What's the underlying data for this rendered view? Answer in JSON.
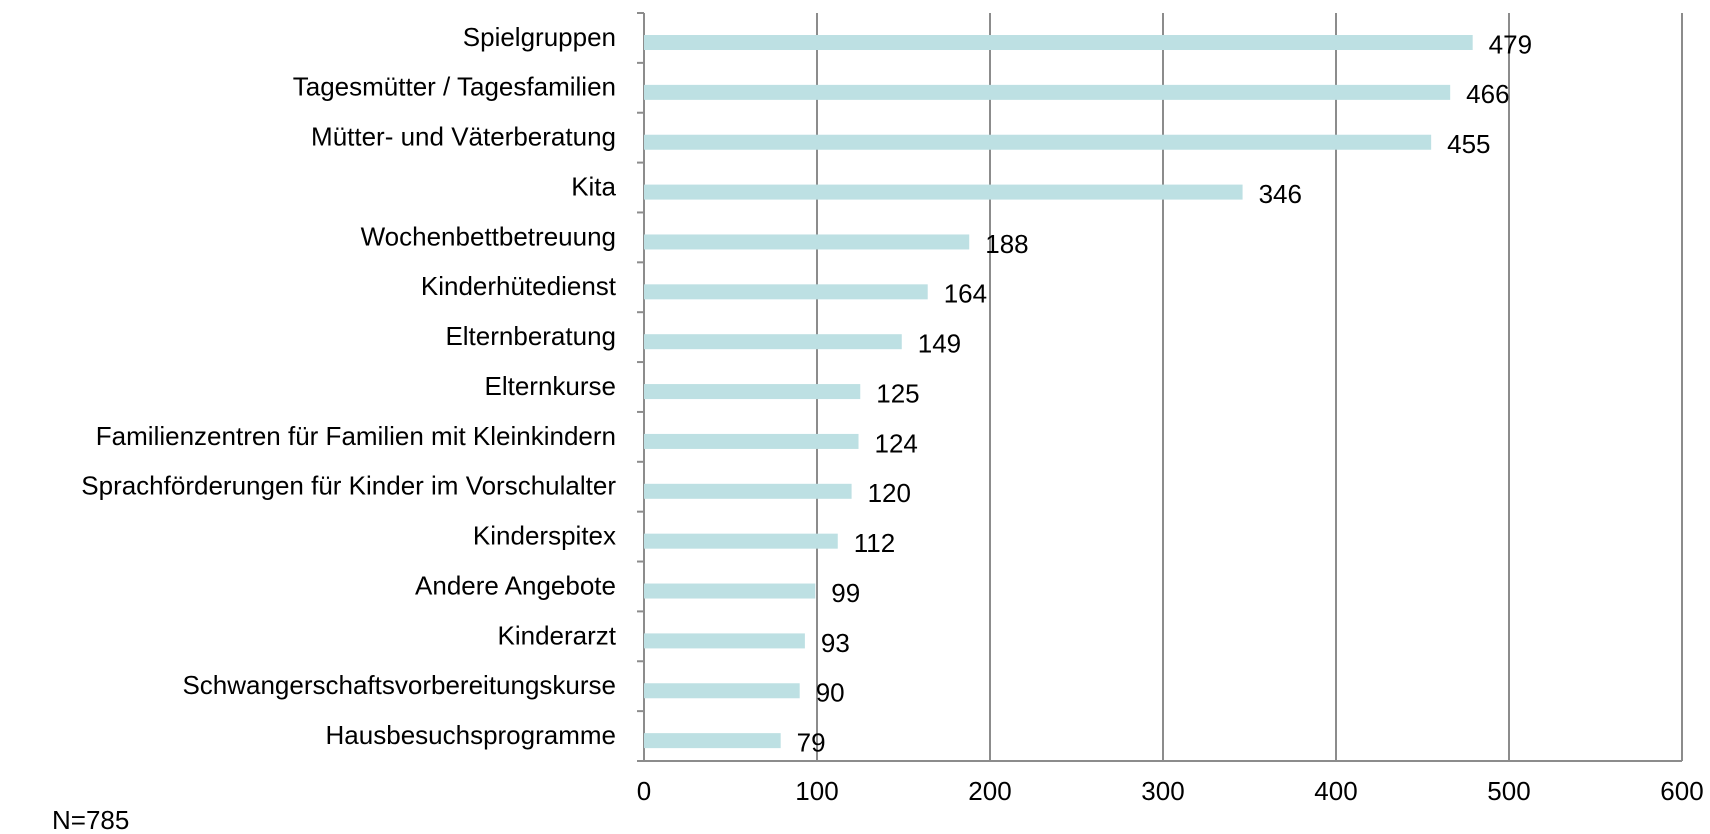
{
  "chart_data": {
    "type": "bar",
    "orientation": "horizontal",
    "categories": [
      "Spielgruppen",
      "Tagesmütter / Tagesfamilien",
      "Mütter- und Väterberatung",
      "Kita",
      "Wochenbettbetreuung",
      "Kinderhütedienst",
      "Elternberatung",
      "Elternkurse",
      "Familienzentren für Familien mit Kleinkindern",
      "Sprachförderungen für Kinder im Vorschulalter",
      "Kinderspitex",
      "Andere Angebote",
      "Kinderarzt",
      "Schwangerschaftsvorbereitungskurse",
      "Hausbesuchsprogramme"
    ],
    "values": [
      479,
      466,
      455,
      346,
      188,
      164,
      149,
      125,
      124,
      120,
      112,
      99,
      93,
      90,
      79
    ],
    "color": "#bde0e3",
    "xlim": [
      0,
      600
    ],
    "xticks": [
      0,
      100,
      200,
      300,
      400,
      500,
      600
    ],
    "grid": true,
    "footnote": "N=785"
  }
}
